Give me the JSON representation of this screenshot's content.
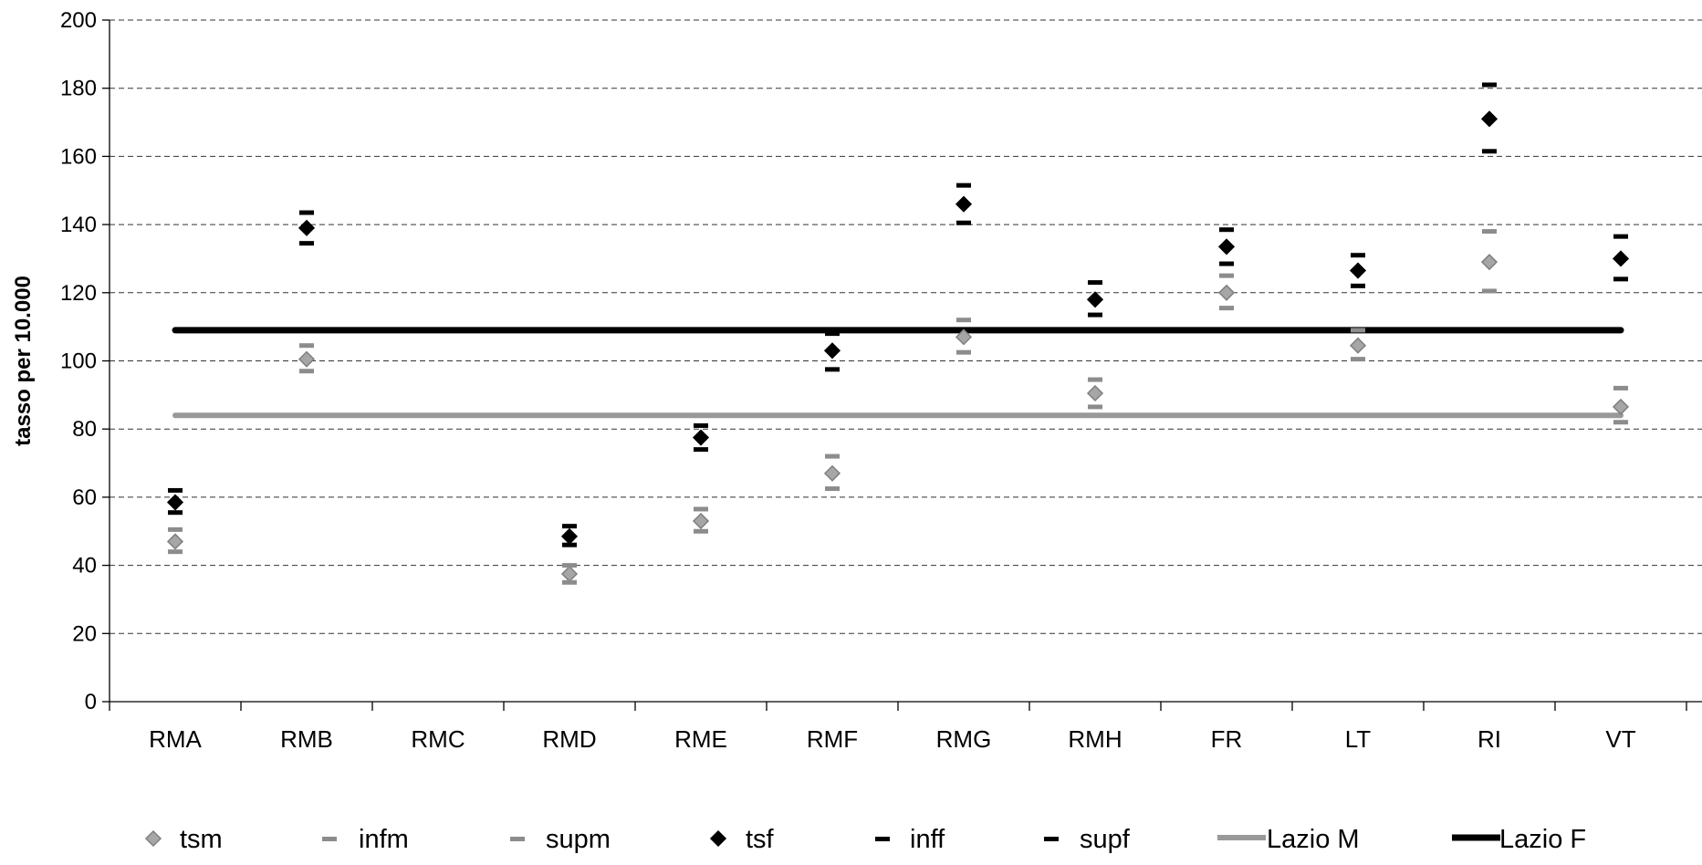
{
  "chart_data": {
    "type": "scatter",
    "ylabel": "tasso per 10.000",
    "ylim": [
      0,
      200
    ],
    "yticks": [
      0,
      20,
      40,
      60,
      80,
      100,
      120,
      140,
      160,
      180,
      200
    ],
    "grid": "horizontal dashed",
    "legend_position": "bottom",
    "categories": [
      "RMA",
      "RMB",
      "RMC",
      "RMD",
      "RME",
      "RMF",
      "RMG",
      "RMH",
      "FR",
      "LT",
      "RI",
      "VT"
    ],
    "series": [
      {
        "name": "tsm",
        "marker": "diamond",
        "color": "#a6a6a6",
        "values": [
          47,
          100.5,
          null,
          37.5,
          53,
          67,
          107,
          90.5,
          120,
          104.5,
          129,
          86.5
        ]
      },
      {
        "name": "infm",
        "marker": "dash",
        "color": "#8c8c8c",
        "values": [
          44,
          97,
          null,
          35,
          50,
          62.5,
          102.5,
          86.5,
          115.5,
          100.5,
          120.5,
          82
        ]
      },
      {
        "name": "supm",
        "marker": "dash",
        "color": "#8c8c8c",
        "values": [
          50.5,
          104.5,
          null,
          40,
          56.5,
          72,
          112,
          94.5,
          125,
          109,
          138,
          92
        ]
      },
      {
        "name": "tsf",
        "marker": "diamond",
        "color": "#000000",
        "values": [
          58.5,
          139,
          null,
          48.5,
          77.5,
          103,
          146,
          118,
          133.5,
          126.5,
          171,
          130
        ]
      },
      {
        "name": "inff",
        "marker": "dash",
        "color": "#000000",
        "values": [
          55.5,
          134.5,
          null,
          46,
          74,
          97.5,
          140.5,
          113.5,
          128.5,
          122,
          161.5,
          124
        ]
      },
      {
        "name": "supf",
        "marker": "dash",
        "color": "#000000",
        "values": [
          62,
          143.5,
          null,
          51.5,
          81,
          108,
          151.5,
          123,
          138.5,
          131,
          181,
          136.5
        ]
      },
      {
        "name": "Lazio M",
        "marker": "line",
        "color": "#999999",
        "value": 84
      },
      {
        "name": "Lazio F",
        "marker": "line",
        "color": "#000000",
        "value": 109
      }
    ]
  }
}
